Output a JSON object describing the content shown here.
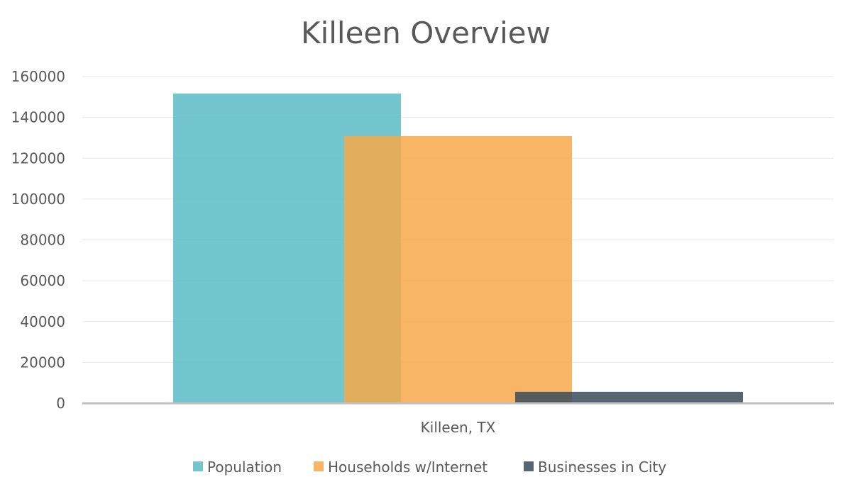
{
  "chart_data": {
    "type": "bar",
    "title": "Killeen Overview",
    "xlabel": "",
    "ylabel": "",
    "categories": [
      "Killeen, TX"
    ],
    "series": [
      {
        "name": "Population",
        "values": [
          151700
        ],
        "color": "#5BBCC5"
      },
      {
        "name": "Households w/Internet",
        "values": [
          130900
        ],
        "color": "#F7A84A"
      },
      {
        "name": "Businesses in City",
        "values": [
          5600
        ],
        "color": "#3A4B5A"
      }
    ],
    "ylim": [
      0,
      160000
    ],
    "yticks": [
      "0",
      "20000",
      "40000",
      "60000",
      "80000",
      "100000",
      "120000",
      "140000",
      "160000"
    ],
    "grid": true,
    "legend": "bottom",
    "bar_opacity": 0.85,
    "bars_overlap": true
  }
}
